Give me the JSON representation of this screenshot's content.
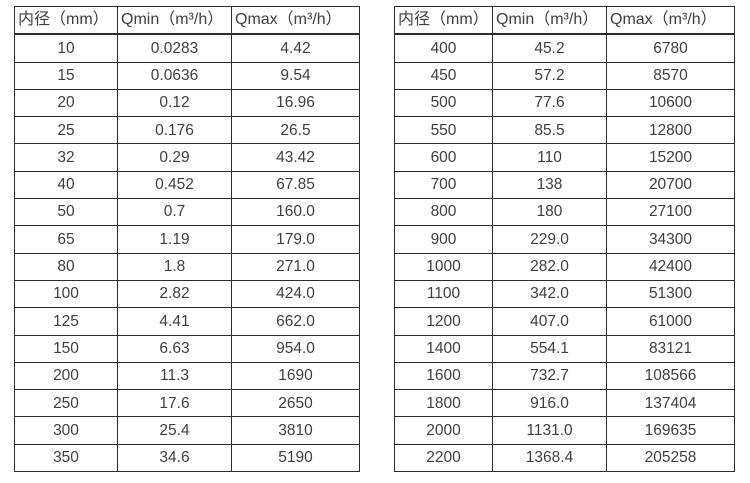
{
  "colors": {
    "text": "#3f3f3f",
    "border": "#2b2b2b",
    "background": "#ffffff"
  },
  "tables": [
    {
      "name": "flow-range-table-small-diameters",
      "headers": [
        "内径（mm）",
        "Qmin（m³/h）",
        "Qmax（m³/h）"
      ],
      "rows": [
        [
          "10",
          "0.0283",
          "4.42"
        ],
        [
          "15",
          "0.0636",
          "9.54"
        ],
        [
          "20",
          "0.12",
          "16.96"
        ],
        [
          "25",
          "0.176",
          "26.5"
        ],
        [
          "32",
          "0.29",
          "43.42"
        ],
        [
          "40",
          "0.452",
          "67.85"
        ],
        [
          "50",
          "0.7",
          "160.0"
        ],
        [
          "65",
          "1.19",
          "179.0"
        ],
        [
          "80",
          "1.8",
          "271.0"
        ],
        [
          "100",
          "2.82",
          "424.0"
        ],
        [
          "125",
          "4.41",
          "662.0"
        ],
        [
          "150",
          "6.63",
          "954.0"
        ],
        [
          "200",
          "11.3",
          "1690"
        ],
        [
          "250",
          "17.6",
          "2650"
        ],
        [
          "300",
          "25.4",
          "3810"
        ],
        [
          "350",
          "34.6",
          "5190"
        ]
      ]
    },
    {
      "name": "flow-range-table-large-diameters",
      "headers": [
        "内径（mm）",
        "Qmin（m³/h）",
        "Qmax（m³/h）"
      ],
      "rows": [
        [
          "400",
          "45.2",
          "6780"
        ],
        [
          "450",
          "57.2",
          "8570"
        ],
        [
          "500",
          "77.6",
          "10600"
        ],
        [
          "550",
          "85.5",
          "12800"
        ],
        [
          "600",
          "110",
          "15200"
        ],
        [
          "700",
          "138",
          "20700"
        ],
        [
          "800",
          "180",
          "27100"
        ],
        [
          "900",
          "229.0",
          "34300"
        ],
        [
          "1000",
          "282.0",
          "42400"
        ],
        [
          "1100",
          "342.0",
          "51300"
        ],
        [
          "1200",
          "407.0",
          "61000"
        ],
        [
          "1400",
          "554.1",
          "83121"
        ],
        [
          "1600",
          "732.7",
          "108566"
        ],
        [
          "1800",
          "916.0",
          "137404"
        ],
        [
          "2000",
          "1131.0",
          "169635"
        ],
        [
          "2200",
          "1368.4",
          "205258"
        ]
      ]
    }
  ]
}
